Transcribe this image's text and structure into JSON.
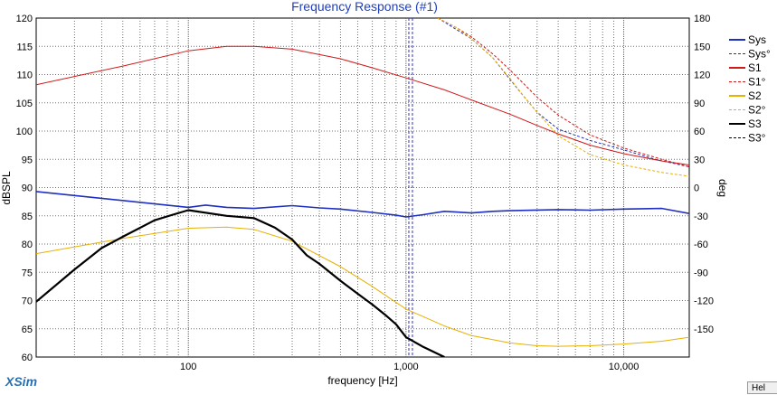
{
  "app": {
    "brand": "XSim",
    "help_label": "Hel"
  },
  "chart_data": {
    "type": "line",
    "title": "Frequency Response (#1)",
    "xlabel": "frequency [Hz]",
    "ylabel": "dBSPL",
    "y2label": "deg",
    "x_scale": "log",
    "xlim": [
      20,
      20000
    ],
    "ylim": [
      60,
      120
    ],
    "y2lim": [
      -180,
      180
    ],
    "x_ticks": [
      {
        "value": 100,
        "label": "100"
      },
      {
        "value": 1000,
        "label": "1,000"
      },
      {
        "value": 10000,
        "label": "10,000"
      }
    ],
    "y_ticks": [
      60,
      65,
      70,
      75,
      80,
      85,
      90,
      95,
      100,
      105,
      110,
      115,
      120
    ],
    "y2_ticks": [
      -150,
      -120,
      -90,
      -60,
      -30,
      0,
      30,
      60,
      90,
      120,
      150,
      180
    ],
    "grid": true,
    "legend_position": "right",
    "series": [
      {
        "name": "Sys",
        "axis": "left",
        "color": "#1f2fbf",
        "dash": "solid",
        "x": [
          20,
          100,
          120,
          150,
          200,
          300,
          400,
          500,
          700,
          900,
          1000,
          1200,
          1500,
          2000,
          2500,
          3000,
          5000,
          7000,
          10000,
          15000,
          20000
        ],
        "y": [
          89.3,
          86.5,
          86.9,
          86.5,
          86.3,
          86.8,
          86.4,
          86.2,
          85.6,
          85.1,
          84.8,
          85.2,
          85.8,
          85.5,
          85.8,
          85.9,
          86.1,
          86.0,
          86.2,
          86.3,
          85.4
        ]
      },
      {
        "name": "Sys°",
        "axis": "right",
        "color": "#1f2fbf",
        "dash": "dashed",
        "x": [
          1400,
          1700,
          2000,
          2500,
          3000,
          3500,
          4000,
          5000,
          7000,
          10000,
          14000,
          20000
        ],
        "y": [
          180,
          168,
          158,
          138,
          115,
          96,
          80,
          62,
          50,
          40,
          30,
          22
        ]
      },
      {
        "name": "S1",
        "axis": "left",
        "color": "#d01818",
        "dash": "solid",
        "x": [
          20,
          50,
          100,
          150,
          200,
          300,
          500,
          700,
          1000,
          1500,
          2000,
          3000,
          4000,
          5000,
          7000,
          10000,
          15000,
          20000
        ],
        "y": [
          108.2,
          111.5,
          114.2,
          115.0,
          115.0,
          114.5,
          112.8,
          111.2,
          109.4,
          107.3,
          105.5,
          103.0,
          101.0,
          99.5,
          97.5,
          96.0,
          94.7,
          94.0
        ]
      },
      {
        "name": "S1°",
        "axis": "right",
        "color": "#d01818",
        "dash": "dashed",
        "x": [
          1400,
          1700,
          2000,
          2500,
          3000,
          4000,
          5000,
          7000,
          10000,
          15000,
          20000
        ],
        "y": [
          180,
          170,
          160,
          142,
          125,
          96,
          77,
          56,
          42,
          30,
          22
        ]
      },
      {
        "name": "S2",
        "axis": "left",
        "color": "#e8b000",
        "dash": "solid",
        "x": [
          20,
          50,
          100,
          150,
          200,
          300,
          500,
          700,
          1000,
          1500,
          2000,
          3000,
          4000,
          5000,
          7000,
          10000,
          15000,
          20000
        ],
        "y": [
          78.3,
          81.0,
          82.8,
          83.0,
          82.6,
          80.5,
          76.0,
          72.5,
          68.5,
          65.5,
          63.8,
          62.5,
          62.0,
          61.9,
          62.0,
          62.3,
          62.8,
          63.5
        ]
      },
      {
        "name": "S2°",
        "axis": "right",
        "color": "#e8b000",
        "dash": "dashed",
        "x": [
          1400,
          1700,
          2000,
          2500,
          3000,
          3500,
          4000,
          5000,
          7000,
          10000,
          15000,
          20000
        ],
        "y": [
          180,
          170,
          158,
          138,
          116,
          96,
          80,
          55,
          35,
          24,
          16,
          12
        ]
      },
      {
        "name": "S3",
        "axis": "left",
        "color": "#000000",
        "dash": "solid",
        "x": [
          20,
          30,
          40,
          50,
          70,
          85,
          100,
          150,
          200,
          250,
          300,
          350,
          400,
          500,
          600,
          700,
          800,
          900,
          1000,
          1200,
          1500
        ],
        "y": [
          69.8,
          75.5,
          79.3,
          81.3,
          84.2,
          85.2,
          86.0,
          85.0,
          84.6,
          82.9,
          80.8,
          78.0,
          76.5,
          73.5,
          71.2,
          69.3,
          67.5,
          65.8,
          63.5,
          61.8,
          60.0
        ]
      },
      {
        "name": "S3°",
        "axis": "right",
        "color": "#000000",
        "dash": "dashed",
        "x": [],
        "y": []
      }
    ],
    "markers": [
      1030,
      1070
    ]
  }
}
